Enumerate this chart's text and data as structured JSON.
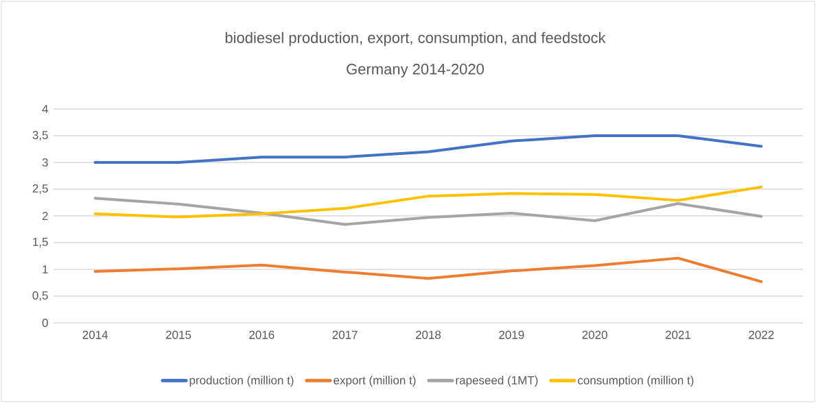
{
  "chart_data": {
    "type": "line",
    "title": "biodiesel production, export,  consumption, and feedstock",
    "subtitle": "Germany 2014-2020",
    "categories": [
      "2014",
      "2015",
      "2016",
      "2017",
      "2018",
      "2019",
      "2020",
      "2021",
      "2022"
    ],
    "series": [
      {
        "name": "production (million t)",
        "color": "#4472c4",
        "values": [
          3.0,
          3.0,
          3.1,
          3.1,
          3.2,
          3.4,
          3.5,
          3.5,
          3.3
        ]
      },
      {
        "name": "export (million t)",
        "color": "#ed7d31",
        "values": [
          0.96,
          1.01,
          1.08,
          0.95,
          0.83,
          0.97,
          1.07,
          1.21,
          0.77
        ]
      },
      {
        "name": "rapeseed (1MT)",
        "color": "#a5a5a5",
        "values": [
          2.33,
          2.22,
          2.05,
          1.84,
          1.97,
          2.05,
          1.91,
          2.23,
          1.99
        ]
      },
      {
        "name": "consumption (million t)",
        "color": "#ffc000",
        "values": [
          2.04,
          1.98,
          2.04,
          2.14,
          2.37,
          2.42,
          2.4,
          2.29,
          2.54
        ]
      }
    ],
    "ylim": [
      0,
      4
    ],
    "yticks": [
      0,
      {
        "value": 0.5,
        "label": "0,5"
      },
      1,
      {
        "value": 1.5,
        "label": "1,5"
      },
      2,
      {
        "value": 2.5,
        "label": "2,5"
      },
      3,
      {
        "value": 3.5,
        "label": "3,5"
      },
      4
    ],
    "grid": "y",
    "legend": "bottom",
    "marker": "none",
    "line_style": "solid"
  }
}
